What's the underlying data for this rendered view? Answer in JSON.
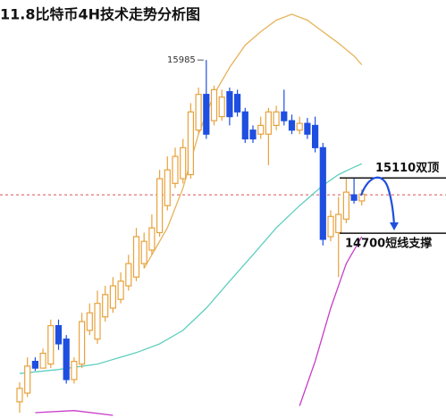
{
  "chart_data": {
    "type": "candlestick",
    "title": "11.8比特币4H技术走势分析图",
    "ylim": [
      13330,
      16430
    ],
    "open": [
      13450,
      13515,
      13750,
      13700,
      13730,
      14015,
      13915,
      13615,
      13730,
      13980,
      13915,
      14080,
      14145,
      14210,
      14310,
      14375,
      14475,
      14575,
      14705,
      14905,
      15070,
      15105,
      15135,
      15465,
      15730,
      15535,
      15565,
      15750,
      15730,
      15600,
      15465,
      15435,
      15435,
      15500,
      15600,
      15535,
      15465,
      15515,
      15500,
      15335,
      14675,
      14705,
      14805,
      14985,
      14940
    ],
    "high": [
      13595,
      13780,
      13780,
      13845,
      14060,
      14060,
      13945,
      13780,
      14110,
      14180,
      14275,
      14310,
      14375,
      14410,
      14540,
      14740,
      14705,
      14840,
      15170,
      15270,
      15335,
      15400,
      15665,
      15780,
      15985,
      15795,
      15765,
      15780,
      15765,
      15630,
      15500,
      15565,
      15630,
      15645,
      15765,
      15580,
      15565,
      15555,
      15565,
      15370,
      14870,
      14970,
      15105,
      15105,
      15025
    ],
    "low": [
      13370,
      13485,
      13680,
      13700,
      13700,
      13835,
      13585,
      13585,
      13700,
      13945,
      13880,
      14045,
      14110,
      14180,
      14275,
      14345,
      14440,
      14540,
      14675,
      14870,
      15035,
      15070,
      15105,
      15435,
      15400,
      15500,
      15535,
      15500,
      15565,
      15370,
      15370,
      15400,
      15205,
      15465,
      15500,
      15435,
      15435,
      15400,
      15300,
      14610,
      14640,
      14375,
      14775,
      14920,
      14905
    ],
    "close": [
      13550,
      13715,
      13700,
      13810,
      14015,
      13880,
      13615,
      13750,
      14045,
      14110,
      14180,
      14245,
      14310,
      14345,
      14475,
      14675,
      14640,
      14740,
      15105,
      15170,
      15270,
      15335,
      15600,
      15730,
      15435,
      15765,
      15710,
      15565,
      15600,
      15400,
      15400,
      15500,
      15600,
      15600,
      15535,
      15465,
      15515,
      15435,
      15335,
      14655,
      14825,
      14840,
      15005,
      14945,
      14990
    ],
    "up_color": "#e8a23c",
    "down_color": "#1f4fe0",
    "series": [
      {
        "color": "#e6b35a",
        "x": [
          16,
          19,
          21,
          23,
          25,
          27,
          29,
          31,
          33,
          35,
          37,
          39,
          41,
          43,
          44
        ],
        "values": [
          14440,
          14740,
          15035,
          15435,
          15730,
          15930,
          16095,
          16195,
          16280,
          16325,
          16280,
          16195,
          16110,
          16015,
          15950
        ]
      },
      {
        "color": "#5fcfbf",
        "x": [
          0,
          5,
          10,
          15,
          18,
          21,
          24,
          27,
          30,
          33,
          36,
          39,
          41,
          43,
          44
        ],
        "values": [
          13660,
          13690,
          13730,
          13815,
          13880,
          13980,
          14145,
          14345,
          14540,
          14740,
          14905,
          15055,
          15135,
          15190,
          15215
        ]
      },
      {
        "color": "#c83cc8",
        "x": [
          2,
          7,
          12,
          13,
          36,
          38,
          40,
          42,
          44
        ],
        "values": [
          13370,
          13385,
          13350,
          null,
          13420,
          13750,
          14145,
          14475,
          14675
        ]
      }
    ],
    "reference_line": {
      "value": 14985,
      "color": "#d9534f"
    },
    "levels": [
      {
        "value": 15110,
        "label": "15110双顶"
      },
      {
        "value": 14700,
        "label": "14700短线支撑"
      }
    ]
  }
}
